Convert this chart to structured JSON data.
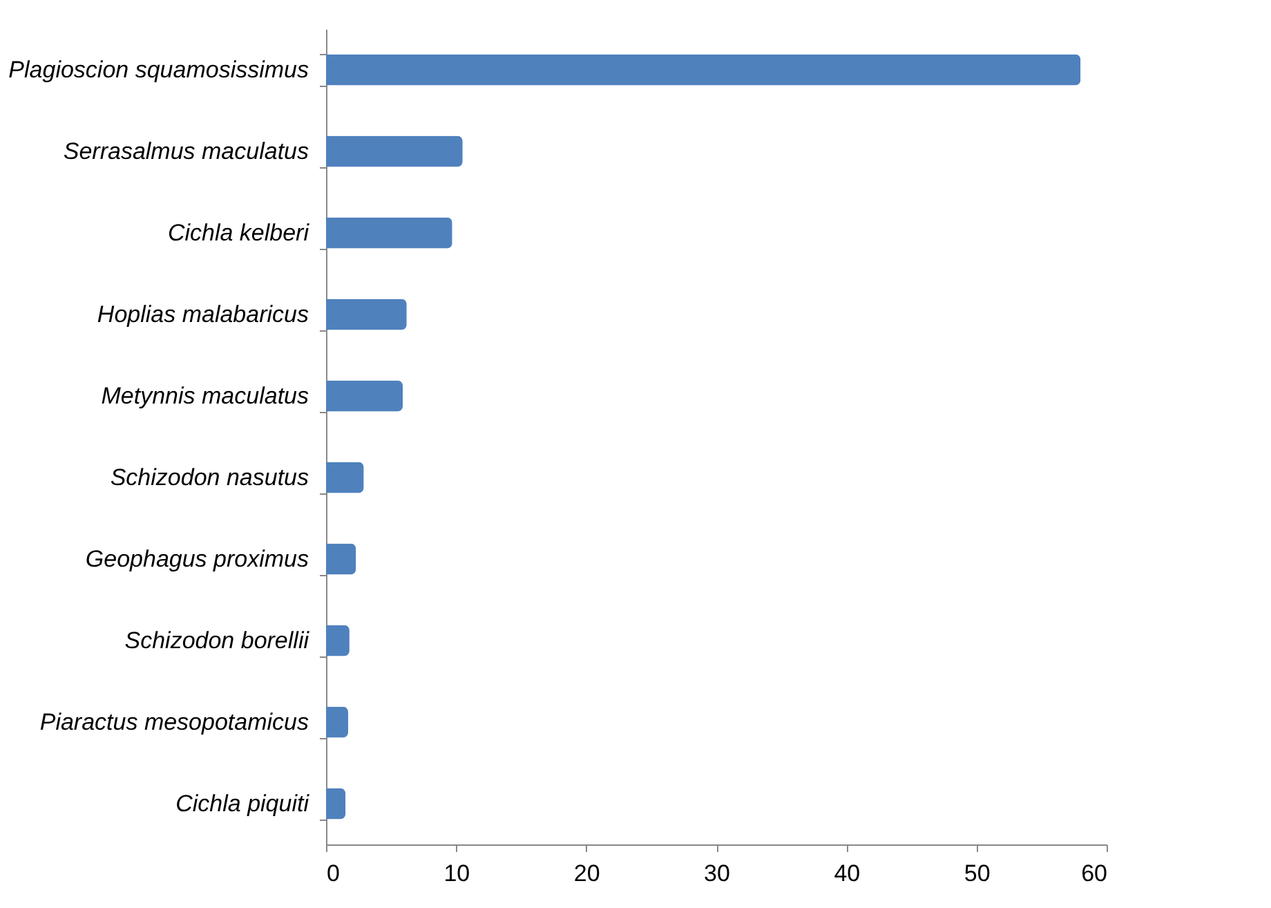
{
  "chart_data": {
    "type": "bar",
    "orientation": "horizontal",
    "categories": [
      "Plagioscion squamosissimus",
      "Serrasalmus maculatus",
      "Cichla kelberi",
      "Hoplias malabaricus",
      "Metynnis maculatus",
      "Schizodon nasutus",
      "Geophagus proximus",
      "Schizodon borellii",
      "Piaractus mesopotamicus",
      "Cichla piquiti"
    ],
    "values": [
      58,
      10.5,
      9.7,
      6.2,
      5.9,
      2.9,
      2.3,
      1.8,
      1.7,
      1.5
    ],
    "color": "#4f81bd",
    "xlim": [
      0,
      60
    ],
    "xticks": [
      0,
      10,
      20,
      30,
      40,
      50,
      60
    ],
    "grid": false
  }
}
